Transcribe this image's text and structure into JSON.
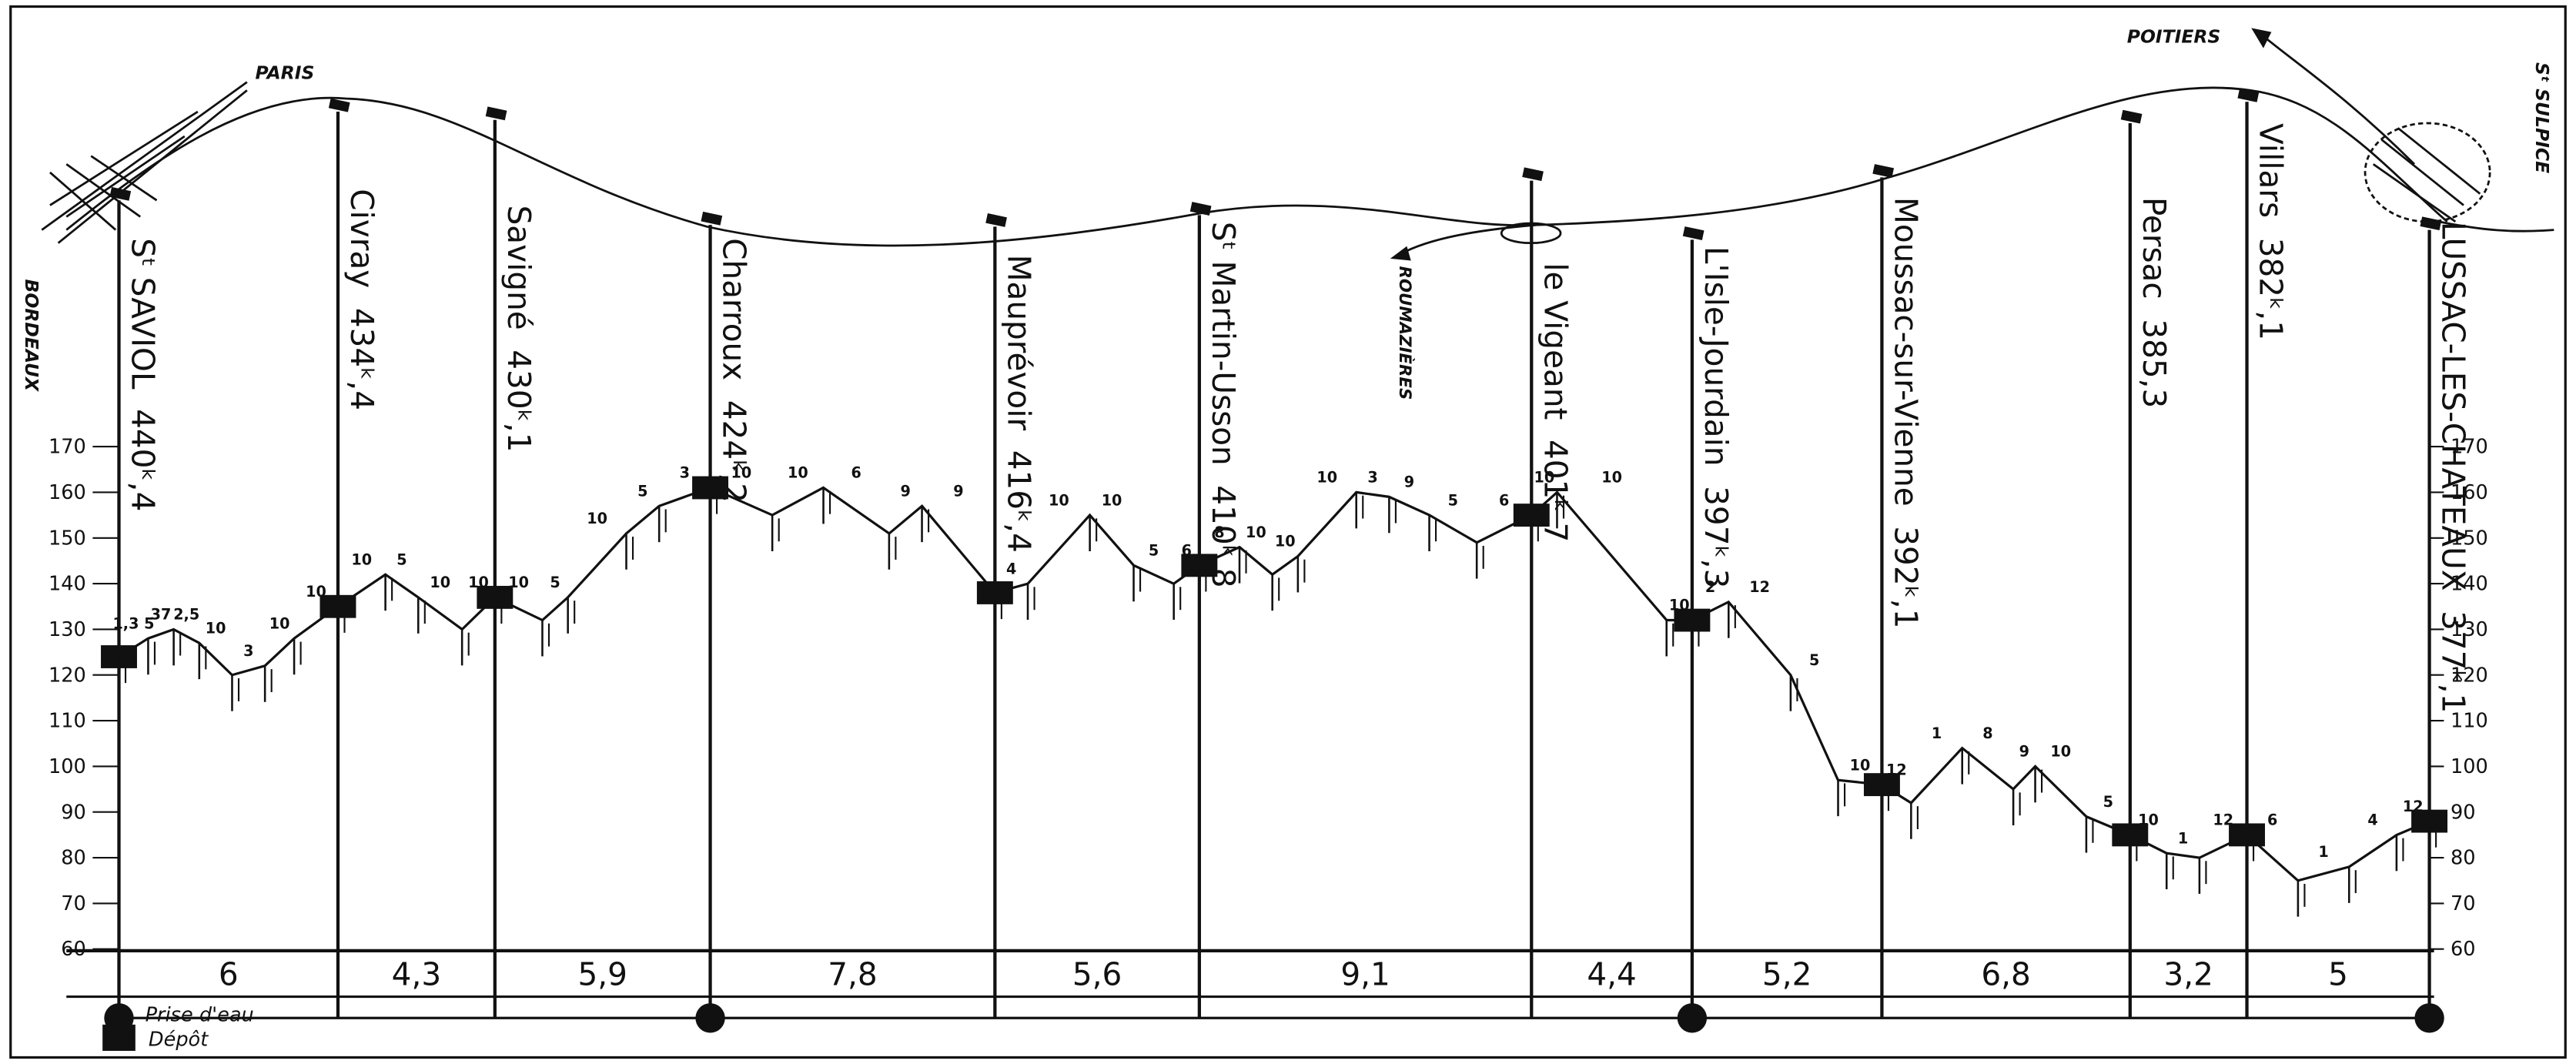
{
  "labels": {
    "paris": "PARIS",
    "poitiers": "POITIERS",
    "st_sulpice": "Sᵗ SULPICE",
    "bordeaux": "BORDEAUX",
    "roumazieres": "ROUMAZIÈRES"
  },
  "legend": {
    "water": "Prise d'eau",
    "depot": "Dépôt"
  },
  "elevation_ticks": [
    60,
    70,
    80,
    90,
    100,
    110,
    120,
    130,
    140,
    150,
    160,
    170
  ],
  "elevation_range": [
    60,
    170
  ],
  "stations": [
    {
      "name": "Sᵗ SAVIOL",
      "km": "440ᵏ,4",
      "water_intake": true,
      "depot": true
    },
    {
      "name": "Civray",
      "km": "434ᵏ,4",
      "water_intake": false,
      "depot": false
    },
    {
      "name": "Savigné",
      "km": "430ᵏ,1",
      "water_intake": false,
      "depot": false
    },
    {
      "name": "Charroux",
      "km": "424ᵏ,2",
      "water_intake": true,
      "depot": false
    },
    {
      "name": "Mauprévoir",
      "km": "416ᵏ,4",
      "water_intake": false,
      "depot": false
    },
    {
      "name": "Sᵗ Martin-Usson",
      "km": "410ᵏ,8",
      "water_intake": false,
      "depot": false
    },
    {
      "name": "le Vigeant",
      "km": "401ᵏ,7",
      "water_intake": false,
      "depot": false
    },
    {
      "name": "L'Isle-Jourdain",
      "km": "397ᵏ,3",
      "water_intake": true,
      "depot": false
    },
    {
      "name": "Moussac-sur-Vienne",
      "km": "392ᵏ,1",
      "water_intake": false,
      "depot": false
    },
    {
      "name": "Persac",
      "km": "385,3",
      "water_intake": false,
      "depot": false
    },
    {
      "name": "Villars",
      "km": "382ᵏ,1",
      "water_intake": false,
      "depot": false
    },
    {
      "name": "LUSSAC-LES-CHATEAUX",
      "km": "377ᵏ,1",
      "water_intake": true,
      "depot": false
    }
  ],
  "distances": [
    {
      "value": 6,
      "label": "6"
    },
    {
      "value": 4.3,
      "label": "4,3"
    },
    {
      "value": 5.9,
      "label": "5,9"
    },
    {
      "value": 7.8,
      "label": "7,8"
    },
    {
      "value": 5.6,
      "label": "5,6"
    },
    {
      "value": 9.1,
      "label": "9,1"
    },
    {
      "value": 4.4,
      "label": "4,4"
    },
    {
      "value": 5.2,
      "label": "5,2"
    },
    {
      "value": 6.8,
      "label": "6,8"
    },
    {
      "value": 3.2,
      "label": "3,2"
    },
    {
      "value": 5,
      "label": "5"
    }
  ],
  "profile": {
    "km": [
      0,
      0.8,
      1.5,
      2.2,
      3.1,
      4.0,
      4.8,
      6.0,
      7.3,
      8.2,
      9.4,
      10.3,
      11.6,
      12.3,
      13.9,
      14.8,
      16.2,
      17.9,
      19.3,
      21.1,
      22.0,
      24.0,
      24.9,
      26.6,
      27.8,
      28.9,
      29.6,
      30.7,
      31.6,
      32.3,
      33.9,
      34.8,
      35.9,
      37.2,
      38.7,
      39.4,
      42.4,
      43.1,
      44.1,
      45.8,
      47.1,
      48.3,
      49.1,
      50.5,
      51.9,
      52.5,
      53.9,
      55.1,
      56.1,
      57.0,
      58.3,
      59.7,
      61.1,
      62.4,
      63.3
    ],
    "elevation": [
      124,
      128,
      130,
      127,
      120,
      122,
      128,
      135,
      142,
      137,
      130,
      137,
      132,
      137,
      151,
      157,
      161,
      155,
      161,
      151,
      157,
      138,
      140,
      155,
      144,
      140,
      144,
      148,
      142,
      146,
      160,
      159,
      155,
      149,
      155,
      160,
      132,
      132,
      136,
      120,
      97,
      96,
      92,
      104,
      95,
      100,
      89,
      85,
      81,
      80,
      85,
      75,
      78,
      85,
      88
    ],
    "gradient_labels": [
      "1,3 5",
      "37",
      "2,5",
      "10",
      "3",
      "10",
      "10",
      "10",
      "5",
      "10",
      "10",
      "10",
      "5",
      "10",
      "5",
      "3",
      "10",
      "10",
      "6",
      "9",
      "9",
      "4",
      "10",
      "10",
      "5",
      "6",
      "8",
      "10",
      "10",
      "10",
      "3",
      "9",
      "5",
      "6",
      "10",
      "10",
      "10",
      "2",
      "12",
      "5",
      "10",
      "12",
      "1",
      "8",
      "9",
      "10",
      "5",
      "10",
      "1",
      "12",
      "6",
      "1",
      "4",
      "12",
      null
    ]
  }
}
